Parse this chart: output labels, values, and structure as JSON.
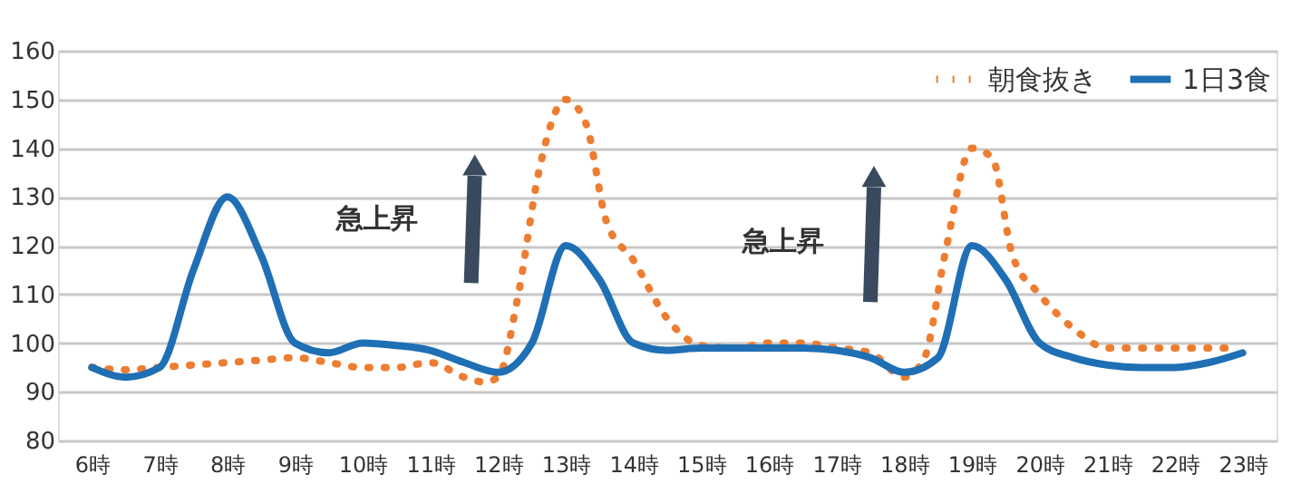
{
  "chart_data": {
    "type": "line",
    "xlim": [
      5.5,
      23.5
    ],
    "xticks": [
      {
        "value": 6,
        "label": "6時"
      },
      {
        "value": 7,
        "label": "7時"
      },
      {
        "value": 8,
        "label": "8時"
      },
      {
        "value": 9,
        "label": "9時"
      },
      {
        "value": 10,
        "label": "10時"
      },
      {
        "value": 11,
        "label": "11時"
      },
      {
        "value": 12,
        "label": "12時"
      },
      {
        "value": 13,
        "label": "13時"
      },
      {
        "value": 14,
        "label": "14時"
      },
      {
        "value": 15,
        "label": "15時"
      },
      {
        "value": 16,
        "label": "16時"
      },
      {
        "value": 17,
        "label": "17時"
      },
      {
        "value": 18,
        "label": "18時"
      },
      {
        "value": 19,
        "label": "19時"
      },
      {
        "value": 20,
        "label": "20時"
      },
      {
        "value": 21,
        "label": "21時"
      },
      {
        "value": 22,
        "label": "22時"
      },
      {
        "value": 23,
        "label": "23時"
      }
    ],
    "ylim": [
      80,
      160
    ],
    "yticks": [
      80,
      90,
      100,
      110,
      120,
      130,
      140,
      150,
      160
    ],
    "grid": "y",
    "legend": "top right",
    "marker": "none",
    "series": [
      {
        "name": "朝食抜き",
        "color": "#ed7d31",
        "line_style": "dotted",
        "x": [
          6,
          6.5,
          7,
          7.5,
          8,
          8.5,
          9,
          9.5,
          10,
          10.5,
          11,
          11.5,
          11.8,
          12,
          12.3,
          12.6,
          13,
          13.3,
          13.6,
          14,
          14.5,
          15,
          15.5,
          16,
          16.5,
          17,
          17.5,
          18,
          18.3,
          18.6,
          19,
          19.3,
          19.6,
          20,
          20.5,
          21,
          21.5,
          22,
          22.5,
          22.8
        ],
        "values": [
          95,
          94.5,
          95,
          95.5,
          96,
          96.5,
          97,
          96,
          95,
          95,
          96,
          93,
          92,
          93,
          110,
          135,
          150,
          145,
          125,
          117,
          105,
          99.5,
          99,
          100,
          100,
          99,
          98,
          93,
          97,
          118,
          140,
          138,
          118,
          110,
          103,
          99,
          99,
          99,
          99,
          99
        ]
      },
      {
        "name": "1日3食",
        "color": "#1f6fb5",
        "line_style": "solid",
        "x": [
          6,
          6.5,
          7,
          7.5,
          8,
          8.5,
          9,
          9.5,
          10,
          10.5,
          11,
          11.5,
          12,
          12.5,
          13,
          13.5,
          14,
          14.5,
          15,
          15.5,
          16,
          16.5,
          17,
          17.5,
          18,
          18.5,
          19,
          19.5,
          20,
          20.5,
          21,
          21.5,
          22,
          22.5,
          23
        ],
        "values": [
          95,
          93,
          95,
          115,
          130,
          118,
          100,
          98,
          100,
          99.5,
          98.5,
          96,
          94,
          100,
          120,
          113,
          100,
          98.5,
          99,
          99,
          99,
          99,
          98.5,
          97,
          94,
          97,
          120,
          113,
          100,
          97,
          95.5,
          95,
          95,
          96,
          98
        ]
      }
    ],
    "annotations": [
      "急上昇",
      "急上昇"
    ]
  }
}
